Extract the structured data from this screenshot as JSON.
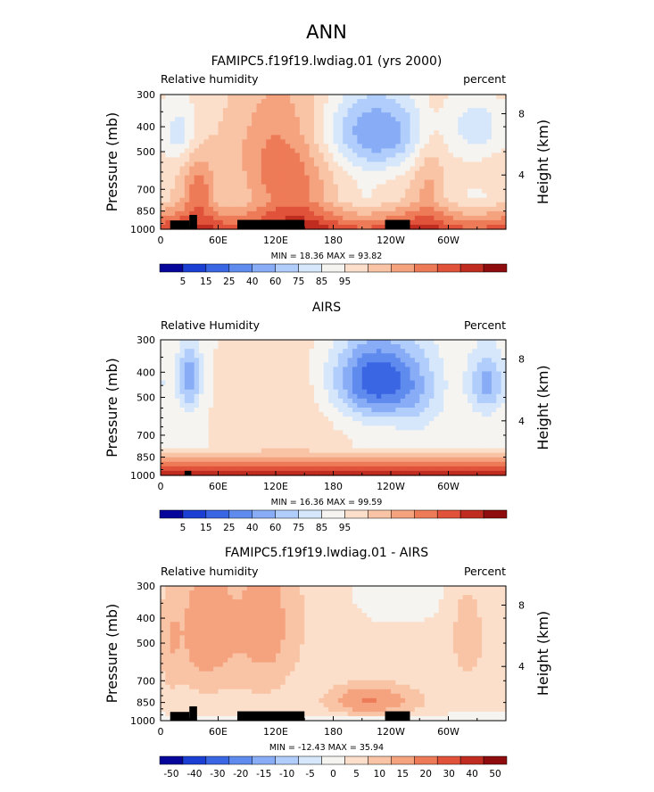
{
  "page_title": "ANN",
  "chart_data": [
    {
      "type": "heatmap",
      "title": "FAMIPC5.f19f19.lwdiag.01 (yrs 2000)",
      "left_label": "Relative humidity",
      "right_label": "percent",
      "ylabel": "Pressure (mb)",
      "y2label": "Height (km)",
      "x_ticks": [
        "0",
        "60E",
        "120E",
        "180",
        "120W",
        "60W"
      ],
      "y_ticks": [
        "300",
        "400",
        "500",
        "700",
        "850",
        "1000"
      ],
      "y2_ticks": [
        "8",
        "4"
      ],
      "stats": "MIN =   18.36   MAX =   93.82",
      "min": 18.36,
      "max": 93.82,
      "colorbar_labels": [
        "5",
        "15",
        "25",
        "40",
        "60",
        "75",
        "85",
        "95"
      ]
    },
    {
      "type": "heatmap",
      "title": "AIRS",
      "left_label": "Relative Humidity",
      "right_label": "Percent",
      "ylabel": "Pressure (mb)",
      "y2label": "Height (km)",
      "x_ticks": [
        "0",
        "60E",
        "120E",
        "180",
        "120W",
        "60W"
      ],
      "y_ticks": [
        "300",
        "400",
        "500",
        "700",
        "850",
        "1000"
      ],
      "y2_ticks": [
        "8",
        "4"
      ],
      "stats": "MIN =   16.36   MAX =   99.59",
      "min": 16.36,
      "max": 99.59,
      "colorbar_labels": [
        "5",
        "15",
        "25",
        "40",
        "60",
        "75",
        "85",
        "95"
      ]
    },
    {
      "type": "heatmap",
      "title": "FAMIPC5.f19f19.lwdiag.01 - AIRS",
      "left_label": "Relative humidity",
      "right_label": "Percent",
      "ylabel": "Pressure (mb)",
      "y2label": "Height (km)",
      "x_ticks": [
        "0",
        "60E",
        "120E",
        "180",
        "120W",
        "60W"
      ],
      "y_ticks": [
        "300",
        "400",
        "500",
        "700",
        "850",
        "1000"
      ],
      "y2_ticks": [
        "8",
        "4"
      ],
      "stats": "MIN = -12.43   MAX =   35.94",
      "min": -12.43,
      "max": 35.94,
      "colorbar_labels": [
        "-50",
        "-40",
        "-30",
        "-20",
        "-15",
        "-10",
        "-5",
        "0",
        "5",
        "10",
        "15",
        "20",
        "30",
        "40",
        "50"
      ]
    }
  ],
  "colorbar_colors": [
    "#07069a",
    "#1b3fd2",
    "#3a66e4",
    "#5f8bee",
    "#88acf6",
    "#b0cdfb",
    "#d6e7fb",
    "#f5f4f0",
    "#fbdfcb",
    "#f9c4a5",
    "#f5a27f",
    "#ee7b58",
    "#e0533a",
    "#c02d20",
    "#8e0c0d"
  ]
}
